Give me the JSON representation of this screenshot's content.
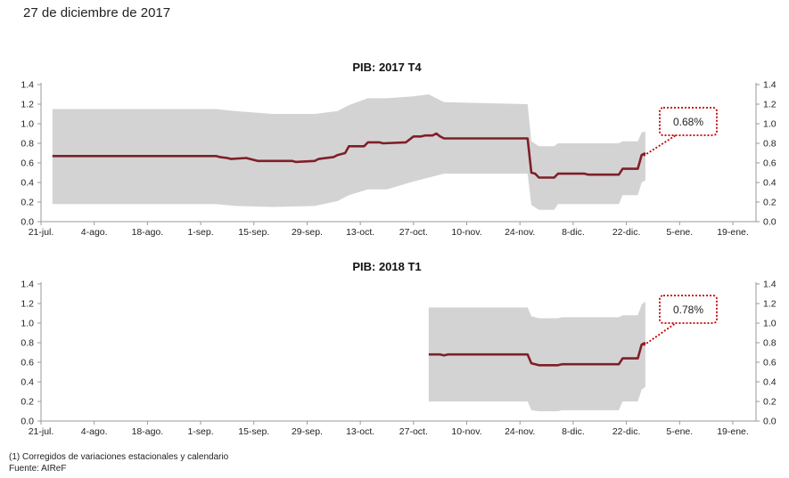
{
  "header": {
    "date": "27 de diciembre de 2017"
  },
  "footnotes": {
    "note": "(1) Corregidos de variaciones estacionales y calendario",
    "source": "Fuente: AIReF"
  },
  "colors": {
    "line": "#7f1f27",
    "band": "#d3d3d3",
    "callout_border": "#c00000",
    "axis": "#9a9a9a"
  },
  "chart_data": [
    {
      "type": "line",
      "title": "PIB: 2017 T4",
      "xlabel": "",
      "ylabel": "",
      "ylim": [
        0,
        1.4
      ],
      "y_ticks": [
        "0.0",
        "0.2",
        "0.4",
        "0.6",
        "0.8",
        "1.0",
        "1.2",
        "1.4"
      ],
      "x_ticks": [
        "21-jul.",
        "4-ago.",
        "18-ago.",
        "1-sep.",
        "15-sep.",
        "29-sep.",
        "13-oct.",
        "27-oct.",
        "10-nov.",
        "24-nov.",
        "8-dic.",
        "22-dic.",
        "5-ene.",
        "19-ene."
      ],
      "grid": false,
      "callout": "0.68%",
      "series": [
        {
          "values": [
            [
              "2017-07-24",
              0.67
            ],
            [
              "2017-08-15",
              0.67
            ],
            [
              "2017-09-05",
              0.67
            ],
            [
              "2017-09-06",
              0.66
            ],
            [
              "2017-09-08",
              0.65
            ],
            [
              "2017-09-09",
              0.64
            ],
            [
              "2017-09-13",
              0.65
            ],
            [
              "2017-09-16",
              0.62
            ],
            [
              "2017-09-25",
              0.62
            ],
            [
              "2017-09-26",
              0.61
            ],
            [
              "2017-10-01",
              0.62
            ],
            [
              "2017-10-02",
              0.64
            ],
            [
              "2017-10-06",
              0.66
            ],
            [
              "2017-10-07",
              0.68
            ],
            [
              "2017-10-09",
              0.7
            ],
            [
              "2017-10-10",
              0.77
            ],
            [
              "2017-10-14",
              0.77
            ],
            [
              "2017-10-15",
              0.81
            ],
            [
              "2017-10-18",
              0.81
            ],
            [
              "2017-10-19",
              0.8
            ],
            [
              "2017-10-25",
              0.81
            ],
            [
              "2017-10-27",
              0.87
            ],
            [
              "2017-10-29",
              0.87
            ],
            [
              "2017-10-30",
              0.88
            ],
            [
              "2017-11-01",
              0.88
            ],
            [
              "2017-11-02",
              0.9
            ],
            [
              "2017-11-03",
              0.87
            ],
            [
              "2017-11-04",
              0.85
            ],
            [
              "2017-11-26",
              0.85
            ],
            [
              "2017-11-27",
              0.5
            ],
            [
              "2017-11-28",
              0.49
            ],
            [
              "2017-11-29",
              0.45
            ],
            [
              "2017-12-03",
              0.45
            ],
            [
              "2017-12-04",
              0.49
            ],
            [
              "2017-12-11",
              0.49
            ],
            [
              "2017-12-12",
              0.48
            ],
            [
              "2017-12-20",
              0.48
            ],
            [
              "2017-12-21",
              0.54
            ],
            [
              "2017-12-25",
              0.54
            ],
            [
              "2017-12-26",
              0.68
            ],
            [
              "2017-12-27",
              0.7
            ]
          ],
          "lower": [
            [
              "2017-07-24",
              0.18
            ],
            [
              "2017-09-05",
              0.18
            ],
            [
              "2017-09-10",
              0.16
            ],
            [
              "2017-09-20",
              0.15
            ],
            [
              "2017-10-01",
              0.16
            ],
            [
              "2017-10-07",
              0.21
            ],
            [
              "2017-10-10",
              0.27
            ],
            [
              "2017-10-15",
              0.33
            ],
            [
              "2017-10-20",
              0.33
            ],
            [
              "2017-10-27",
              0.41
            ],
            [
              "2017-10-31",
              0.45
            ],
            [
              "2017-11-04",
              0.49
            ],
            [
              "2017-11-26",
              0.49
            ],
            [
              "2017-11-27",
              0.17
            ],
            [
              "2017-11-29",
              0.12
            ],
            [
              "2017-12-03",
              0.12
            ],
            [
              "2017-12-04",
              0.18
            ],
            [
              "2017-12-20",
              0.18
            ],
            [
              "2017-12-21",
              0.27
            ],
            [
              "2017-12-25",
              0.27
            ],
            [
              "2017-12-26",
              0.4
            ],
            [
              "2017-12-27",
              0.42
            ]
          ],
          "upper": [
            [
              "2017-07-24",
              1.15
            ],
            [
              "2017-09-05",
              1.15
            ],
            [
              "2017-09-10",
              1.13
            ],
            [
              "2017-09-20",
              1.1
            ],
            [
              "2017-10-01",
              1.1
            ],
            [
              "2017-10-07",
              1.13
            ],
            [
              "2017-10-10",
              1.19
            ],
            [
              "2017-10-15",
              1.26
            ],
            [
              "2017-10-20",
              1.26
            ],
            [
              "2017-10-27",
              1.28
            ],
            [
              "2017-10-31",
              1.3
            ],
            [
              "2017-11-04",
              1.22
            ],
            [
              "2017-11-26",
              1.2
            ],
            [
              "2017-11-27",
              0.82
            ],
            [
              "2017-11-29",
              0.77
            ],
            [
              "2017-12-03",
              0.77
            ],
            [
              "2017-12-04",
              0.8
            ],
            [
              "2017-12-20",
              0.8
            ],
            [
              "2017-12-21",
              0.82
            ],
            [
              "2017-12-25",
              0.82
            ],
            [
              "2017-12-26",
              0.91
            ],
            [
              "2017-12-27",
              0.92
            ]
          ]
        }
      ]
    },
    {
      "type": "line",
      "title": "PIB: 2018 T1",
      "xlabel": "",
      "ylabel": "",
      "ylim": [
        0,
        1.4
      ],
      "y_ticks": [
        "0.0",
        "0.2",
        "0.4",
        "0.6",
        "0.8",
        "1.0",
        "1.2",
        "1.4"
      ],
      "x_ticks": [
        "21-jul.",
        "4-ago.",
        "18-ago.",
        "1-sep.",
        "15-sep.",
        "29-sep.",
        "13-oct.",
        "27-oct.",
        "10-nov.",
        "24-nov.",
        "8-dic.",
        "22-dic.",
        "5-ene.",
        "19-ene."
      ],
      "grid": false,
      "callout": "0.78%",
      "series": [
        {
          "values": [
            [
              "2017-10-31",
              0.68
            ],
            [
              "2017-11-03",
              0.68
            ],
            [
              "2017-11-04",
              0.67
            ],
            [
              "2017-11-05",
              0.68
            ],
            [
              "2017-11-26",
              0.68
            ],
            [
              "2017-11-27",
              0.59
            ],
            [
              "2017-11-29",
              0.57
            ],
            [
              "2017-12-04",
              0.57
            ],
            [
              "2017-12-05",
              0.58
            ],
            [
              "2017-12-20",
              0.58
            ],
            [
              "2017-12-21",
              0.64
            ],
            [
              "2017-12-25",
              0.64
            ],
            [
              "2017-12-26",
              0.78
            ],
            [
              "2017-12-27",
              0.8
            ]
          ],
          "lower": [
            [
              "2017-10-31",
              0.2
            ],
            [
              "2017-11-26",
              0.2
            ],
            [
              "2017-11-27",
              0.11
            ],
            [
              "2017-11-29",
              0.1
            ],
            [
              "2017-12-04",
              0.1
            ],
            [
              "2017-12-05",
              0.11
            ],
            [
              "2017-12-20",
              0.11
            ],
            [
              "2017-12-21",
              0.2
            ],
            [
              "2017-12-25",
              0.2
            ],
            [
              "2017-12-26",
              0.32
            ],
            [
              "2017-12-27",
              0.35
            ]
          ],
          "upper": [
            [
              "2017-10-31",
              1.16
            ],
            [
              "2017-11-26",
              1.16
            ],
            [
              "2017-11-27",
              1.07
            ],
            [
              "2017-11-29",
              1.05
            ],
            [
              "2017-12-04",
              1.05
            ],
            [
              "2017-12-05",
              1.06
            ],
            [
              "2017-12-20",
              1.06
            ],
            [
              "2017-12-21",
              1.08
            ],
            [
              "2017-12-25",
              1.08
            ],
            [
              "2017-12-26",
              1.19
            ],
            [
              "2017-12-27",
              1.22
            ]
          ]
        }
      ]
    }
  ]
}
